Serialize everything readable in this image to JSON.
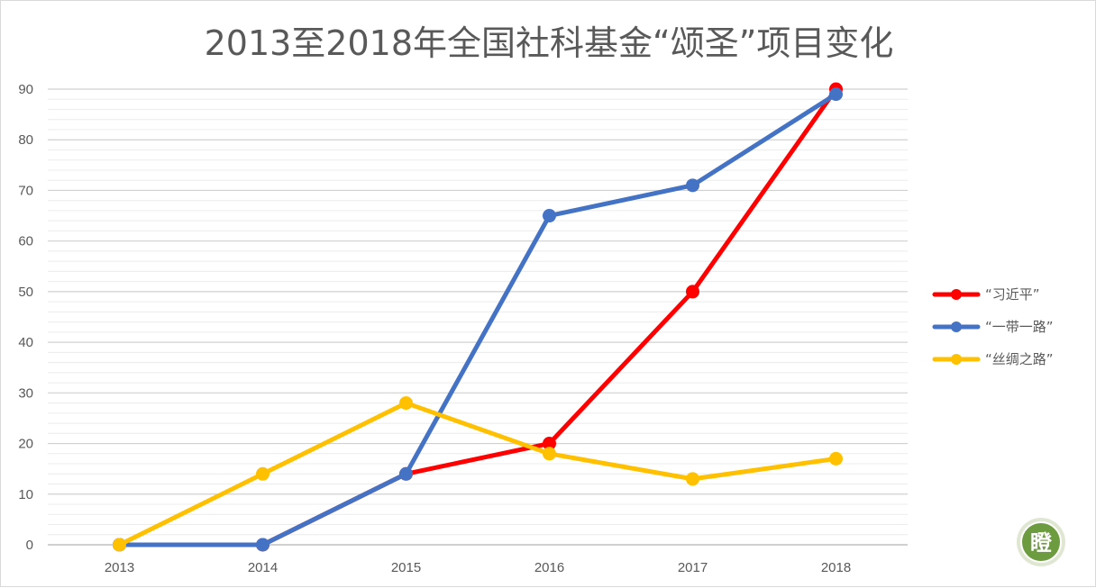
{
  "chart_data": {
    "type": "line",
    "title": "2013至2018年全国社科基金“颂圣”项目变化",
    "categories": [
      "2013",
      "2014",
      "2015",
      "2016",
      "2017",
      "2018"
    ],
    "series": [
      {
        "name": "“习近平”",
        "color": "#ff0000",
        "values": [
          0,
          0,
          14,
          20,
          50,
          90
        ]
      },
      {
        "name": "“一带一路”",
        "color": "#4472c4",
        "values": [
          0,
          0,
          14,
          65,
          71,
          89
        ]
      },
      {
        "name": "“丝绸之路”",
        "color": "#ffc000",
        "values": [
          0,
          14,
          28,
          18,
          13,
          17
        ]
      }
    ],
    "ylim": [
      0,
      90
    ],
    "yticks": [
      "0",
      "10",
      "20",
      "30",
      "40",
      "50",
      "60",
      "70",
      "80",
      "90"
    ],
    "grid": true,
    "legend_position": "right"
  },
  "watermark": {
    "glyph": "瞪",
    "color": "#5b8c3a"
  }
}
